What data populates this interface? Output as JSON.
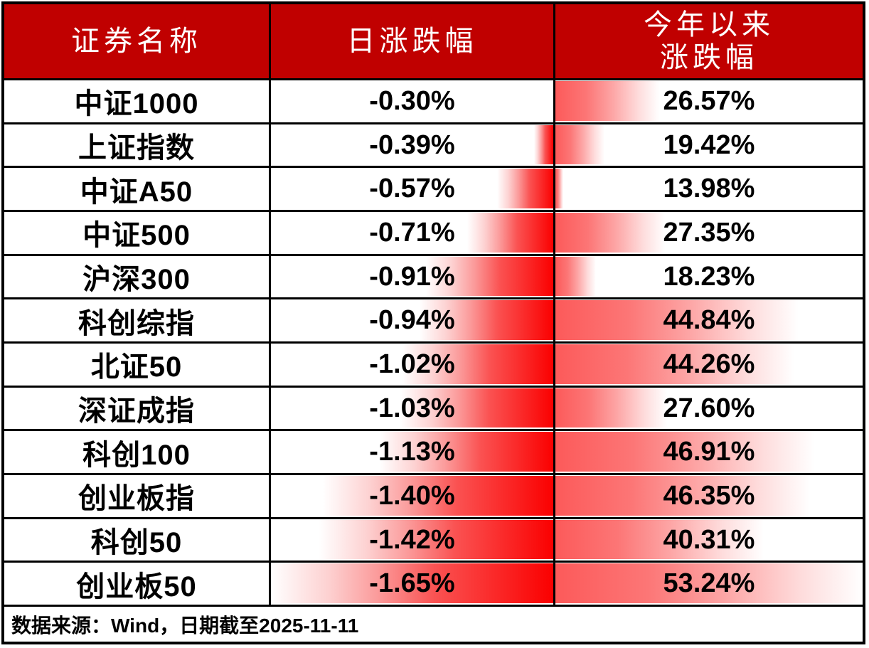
{
  "colors": {
    "header_bg": "#c00000",
    "header_text": "#ffffff",
    "border": "#000000",
    "body_text": "#000000",
    "daily_bar_red": "#fa0000",
    "ytd_bar_red": "#fc5a5a"
  },
  "header": {
    "name_col": "证券名称",
    "daily_col": "日涨跌幅",
    "ytd_col_line1": "今年以来",
    "ytd_col_line2": "涨跌幅"
  },
  "footer": {
    "source_note": "数据来源：Wind，日期截至2025-11-11"
  },
  "rows": [
    {
      "name": "中证1000",
      "daily": "-0.30%",
      "ytd": "26.57%",
      "daily_bar_pct": 0,
      "ytd_bar_pct": 33.8
    },
    {
      "name": "上证指数",
      "daily": "-0.39%",
      "ytd": "19.42%",
      "daily_bar_pct": 6.7,
      "ytd_bar_pct": 16.0
    },
    {
      "name": "中证A50",
      "daily": "-0.57%",
      "ytd": "13.98%",
      "daily_bar_pct": 20.0,
      "ytd_bar_pct": 2.5
    },
    {
      "name": "中证500",
      "daily": "-0.71%",
      "ytd": "27.35%",
      "daily_bar_pct": 30.4,
      "ytd_bar_pct": 35.7
    },
    {
      "name": "沪深300",
      "daily": "-0.91%",
      "ytd": "18.23%",
      "daily_bar_pct": 45.2,
      "ytd_bar_pct": 13.1
    },
    {
      "name": "科创综指",
      "daily": "-0.94%",
      "ytd": "44.84%",
      "daily_bar_pct": 47.4,
      "ytd_bar_pct": 79.1
    },
    {
      "name": "北证50",
      "daily": "-1.02%",
      "ytd": "44.26%",
      "daily_bar_pct": 53.3,
      "ytd_bar_pct": 77.7
    },
    {
      "name": "深证成指",
      "daily": "-1.03%",
      "ytd": "27.60%",
      "daily_bar_pct": 54.1,
      "ytd_bar_pct": 36.3
    },
    {
      "name": "科创100",
      "daily": "-1.13%",
      "ytd": "46.91%",
      "daily_bar_pct": 61.5,
      "ytd_bar_pct": 84.3
    },
    {
      "name": "创业板指",
      "daily": "-1.40%",
      "ytd": "46.35%",
      "daily_bar_pct": 81.5,
      "ytd_bar_pct": 82.9
    },
    {
      "name": "科创50",
      "daily": "-1.42%",
      "ytd": "40.31%",
      "daily_bar_pct": 83.0,
      "ytd_bar_pct": 67.9
    },
    {
      "name": "创业板50",
      "daily": "-1.65%",
      "ytd": "53.24%",
      "daily_bar_pct": 100,
      "ytd_bar_pct": 100
    }
  ],
  "chart_data": {
    "type": "table",
    "title": "",
    "columns": [
      "证券名称",
      "日涨跌幅",
      "今年以来涨跌幅"
    ],
    "categories": [
      "中证1000",
      "上证指数",
      "中证A50",
      "中证500",
      "沪深300",
      "科创综指",
      "北证50",
      "深证成指",
      "科创100",
      "创业板指",
      "科创50",
      "创业板50"
    ],
    "series": [
      {
        "name": "日涨跌幅(%)",
        "values": [
          -0.3,
          -0.39,
          -0.57,
          -0.71,
          -0.91,
          -0.94,
          -1.02,
          -1.03,
          -1.13,
          -1.4,
          -1.42,
          -1.65
        ]
      },
      {
        "name": "今年以来涨跌幅(%)",
        "values": [
          26.57,
          19.42,
          13.98,
          27.35,
          18.23,
          44.84,
          44.26,
          27.6,
          46.91,
          46.35,
          40.31,
          53.24
        ]
      }
    ],
    "annotations": [
      "数据来源：Wind，日期截至2025-11-11"
    ],
    "layout": {
      "databar_daily": {
        "anchor": "right",
        "scale_min_abs": 0.3,
        "scale_max_abs": 1.65,
        "color": "#fa0000",
        "gradient_to": "#ffffff"
      },
      "databar_ytd": {
        "anchor": "left",
        "scale_min": 13.98,
        "scale_max": 53.24,
        "color": "#fc5a5a",
        "gradient_to": "#ffffff"
      }
    }
  }
}
